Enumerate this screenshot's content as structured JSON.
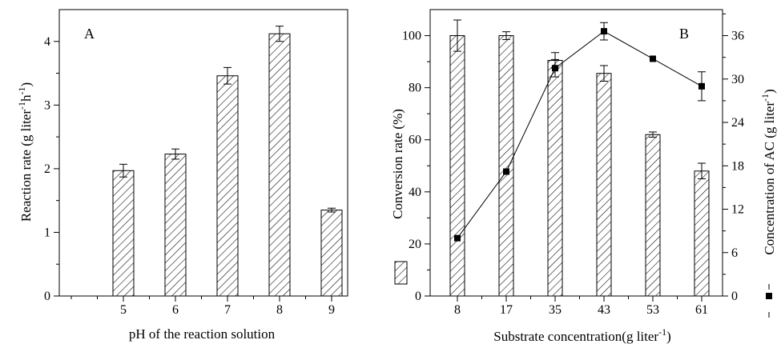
{
  "chart_data": [
    {
      "type": "bar",
      "panel_label": "A",
      "categories": [
        "5",
        "6",
        "7",
        "8",
        "9"
      ],
      "series": [
        {
          "values": [
            1.97,
            2.23,
            3.46,
            4.12,
            1.35
          ],
          "errors": [
            0.1,
            0.08,
            0.13,
            0.12,
            0.03
          ],
          "pattern": "diagonal-hatch"
        }
      ],
      "xlabel": "pH of the reaction solution",
      "ylabel_parts": [
        "Reaction rate (g liter",
        "-1",
        "h",
        "-1",
        ")"
      ],
      "ylim": [
        0,
        4.5
      ],
      "yticks": [
        0,
        1,
        2,
        3,
        4
      ],
      "grid": false,
      "legend": "none"
    },
    {
      "type": "bar+line",
      "panel_label": "B",
      "categories": [
        "8",
        "17",
        "35",
        "43",
        "53",
        "61"
      ],
      "bars": {
        "values": [
          100,
          100,
          90.5,
          85.5,
          62,
          48
        ],
        "errors": [
          6,
          1.5,
          3,
          3,
          1,
          3
        ],
        "pattern": "diagonal-hatch",
        "axis": "left"
      },
      "line": {
        "values": [
          8,
          17.2,
          31.5,
          36.6,
          32.8,
          29
        ],
        "errors": [
          0,
          0,
          1.2,
          1.2,
          0,
          2
        ],
        "marker": "square",
        "axis": "right"
      },
      "xlabel_parts": [
        "Substrate concentration(g liter",
        "-1",
        ")"
      ],
      "ylabel_left": "Conversion rate (%)",
      "ylabel_right_parts": [
        "Concentration of AC (g liter",
        "-1",
        ")"
      ],
      "ylim_left": [
        0,
        110
      ],
      "yticks_left": [
        0,
        20,
        40,
        60,
        80,
        100
      ],
      "ylim_right": [
        0,
        39.6
      ],
      "yticks_right": [
        0,
        6,
        12,
        18,
        24,
        30,
        36
      ],
      "grid": false,
      "legend": "along y-axis titles"
    }
  ]
}
